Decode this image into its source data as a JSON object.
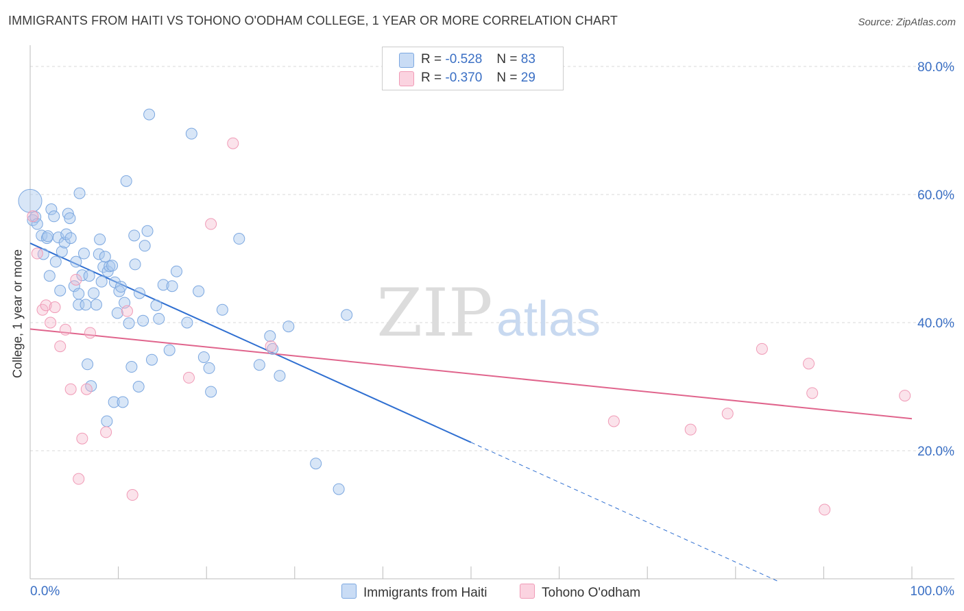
{
  "title": "IMMIGRANTS FROM HAITI VS TOHONO O'ODHAM COLLEGE, 1 YEAR OR MORE CORRELATION CHART",
  "source": "Source: ZipAtlas.com",
  "watermark": {
    "zip": "ZIP",
    "atlas": "atlas"
  },
  "legend": {
    "r_label": "R =",
    "n_label": "N =",
    "rows": [
      {
        "r": "-0.528",
        "n": "83",
        "color": "#a9c8ee"
      },
      {
        "r": "-0.370",
        "n": "29",
        "color": "#f5b9cc"
      }
    ]
  },
  "colors": {
    "blue": "#7ba7e0",
    "blue_line": "#2f6fd1",
    "pink": "#f09ab6",
    "pink_line": "#e0648c",
    "grid": "#d8d8d8",
    "tick_label": "#3a6fc4"
  },
  "chart_data": {
    "type": "scatter",
    "xlabel": "",
    "ylabel": "College, 1 year or more",
    "xlim": [
      0,
      100
    ],
    "ylim": [
      0,
      80
    ],
    "x_tick_labels": [
      "0.0%",
      "100.0%"
    ],
    "y_ticks": [
      20,
      40,
      60,
      80
    ],
    "y_tick_labels": [
      "20.0%",
      "40.0%",
      "60.0%",
      "80.0%"
    ],
    "grid": true,
    "legend_position": "bottom",
    "series": [
      {
        "name": "Immigrants from Haiti",
        "color": "#7ba7e0",
        "points": [
          [
            0.0,
            59.0
          ],
          [
            0.3,
            56.0
          ],
          [
            0.6,
            56.5
          ],
          [
            0.8,
            55.4
          ],
          [
            1.3,
            53.6
          ],
          [
            1.5,
            50.7
          ],
          [
            1.9,
            53.2
          ],
          [
            2.2,
            47.3
          ],
          [
            2.4,
            57.7
          ],
          [
            2.7,
            56.6
          ],
          [
            2.9,
            49.5
          ],
          [
            3.2,
            53.3
          ],
          [
            3.4,
            45.0
          ],
          [
            3.6,
            51.1
          ],
          [
            3.9,
            52.5
          ],
          [
            4.1,
            53.8
          ],
          [
            4.3,
            57.0
          ],
          [
            4.5,
            56.3
          ],
          [
            4.6,
            53.2
          ],
          [
            5.0,
            45.7
          ],
          [
            5.2,
            49.5
          ],
          [
            5.5,
            42.8
          ],
          [
            5.6,
            60.2
          ],
          [
            5.9,
            47.4
          ],
          [
            6.1,
            50.8
          ],
          [
            6.3,
            42.8
          ],
          [
            6.5,
            33.5
          ],
          [
            6.7,
            47.3
          ],
          [
            6.9,
            30.1
          ],
          [
            7.2,
            44.6
          ],
          [
            7.5,
            42.8
          ],
          [
            7.8,
            50.7
          ],
          [
            7.9,
            53.0
          ],
          [
            8.1,
            46.4
          ],
          [
            8.3,
            48.7
          ],
          [
            8.5,
            50.3
          ],
          [
            8.7,
            24.6
          ],
          [
            8.8,
            48.0
          ],
          [
            9.0,
            48.8
          ],
          [
            9.3,
            48.9
          ],
          [
            9.5,
            27.6
          ],
          [
            9.6,
            46.3
          ],
          [
            9.9,
            41.5
          ],
          [
            10.1,
            44.9
          ],
          [
            10.3,
            45.6
          ],
          [
            10.5,
            27.6
          ],
          [
            10.7,
            43.1
          ],
          [
            10.9,
            62.1
          ],
          [
            11.2,
            39.9
          ],
          [
            11.5,
            33.1
          ],
          [
            11.8,
            53.6
          ],
          [
            11.9,
            49.1
          ],
          [
            12.3,
            30.0
          ],
          [
            12.4,
            44.6
          ],
          [
            12.8,
            40.3
          ],
          [
            13.0,
            52.0
          ],
          [
            13.3,
            54.3
          ],
          [
            13.5,
            72.5
          ],
          [
            13.8,
            34.2
          ],
          [
            14.3,
            42.7
          ],
          [
            14.6,
            40.6
          ],
          [
            15.1,
            45.9
          ],
          [
            15.8,
            35.7
          ],
          [
            16.1,
            45.7
          ],
          [
            16.6,
            48.0
          ],
          [
            17.8,
            40.0
          ],
          [
            18.3,
            69.5
          ],
          [
            19.1,
            44.9
          ],
          [
            19.7,
            34.6
          ],
          [
            20.3,
            32.9
          ],
          [
            20.5,
            29.2
          ],
          [
            21.8,
            42.0
          ],
          [
            23.7,
            53.1
          ],
          [
            26.0,
            33.4
          ],
          [
            27.2,
            37.9
          ],
          [
            27.5,
            35.9
          ],
          [
            28.3,
            31.7
          ],
          [
            29.3,
            39.4
          ],
          [
            35.9,
            41.2
          ],
          [
            32.4,
            18.0
          ],
          [
            35.0,
            14.0
          ],
          [
            2.0,
            53.5
          ],
          [
            5.5,
            44.5
          ]
        ]
      },
      {
        "name": "Tohono O'odham",
        "color": "#f09ab6",
        "points": [
          [
            0.3,
            56.6
          ],
          [
            0.8,
            50.8
          ],
          [
            1.4,
            42.0
          ],
          [
            1.8,
            42.7
          ],
          [
            2.3,
            40.0
          ],
          [
            2.8,
            42.4
          ],
          [
            3.4,
            36.3
          ],
          [
            4.0,
            38.9
          ],
          [
            4.6,
            29.6
          ],
          [
            5.2,
            46.7
          ],
          [
            5.5,
            15.6
          ],
          [
            5.9,
            21.9
          ],
          [
            6.4,
            29.6
          ],
          [
            6.8,
            38.4
          ],
          [
            8.6,
            22.9
          ],
          [
            11.0,
            41.8
          ],
          [
            11.6,
            13.1
          ],
          [
            18.0,
            31.4
          ],
          [
            20.5,
            55.4
          ],
          [
            23.0,
            68.0
          ],
          [
            27.3,
            36.3
          ],
          [
            66.2,
            24.6
          ],
          [
            74.9,
            23.3
          ],
          [
            79.1,
            25.8
          ],
          [
            83.0,
            35.9
          ],
          [
            88.3,
            33.6
          ],
          [
            88.7,
            29.0
          ],
          [
            90.1,
            10.8
          ],
          [
            99.2,
            28.6
          ]
        ]
      }
    ],
    "trend_lines": [
      {
        "series": "Immigrants from Haiti",
        "x": [
          0,
          50
        ],
        "y": [
          52.4,
          21.3
        ],
        "dashed_extension": {
          "x": [
            50,
            85
          ],
          "y": [
            21.3,
            -0.5
          ]
        }
      },
      {
        "series": "Tohono O'odham",
        "x": [
          0,
          100
        ],
        "y": [
          39.0,
          25.0
        ]
      }
    ]
  }
}
